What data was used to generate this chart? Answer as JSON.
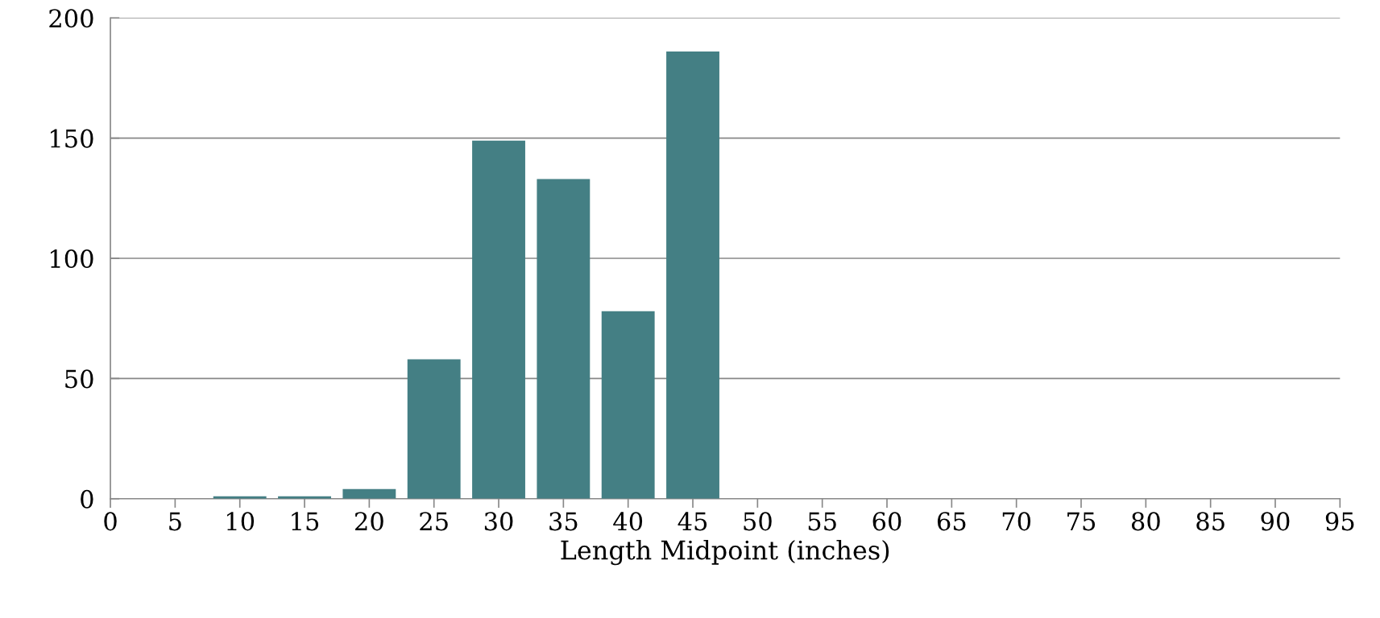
{
  "chart_data": {
    "type": "bar",
    "xlabel": "Length Midpoint (inches)",
    "categories": [
      "0",
      "5",
      "10",
      "15",
      "20",
      "25",
      "30",
      "35",
      "40",
      "45",
      "50",
      "55",
      "60",
      "65",
      "70",
      "75",
      "80",
      "85",
      "90",
      "95"
    ],
    "values": [
      0,
      0,
      1,
      1,
      4,
      58,
      149,
      133,
      78,
      186,
      0,
      0,
      0,
      0,
      0,
      0,
      0,
      0,
      0,
      0
    ],
    "color": "#447f84",
    "ylim": [
      0,
      200
    ],
    "yticks": [
      0,
      50,
      100,
      150,
      200
    ],
    "grid": "y",
    "legend": false
  }
}
